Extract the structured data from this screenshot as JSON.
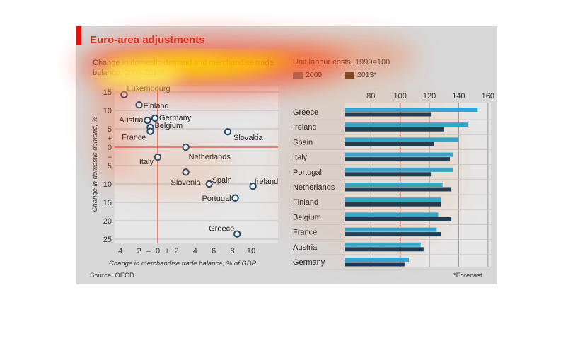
{
  "title": "Euro-area adjustments",
  "source": "Source: OECD",
  "footnote": "*Forecast",
  "colors": {
    "accent": "#e3120b",
    "dot": "#1f4a6b",
    "bar2009": "#2aa9d6",
    "bar2013": "#123a57",
    "redline": "#e34a3a"
  },
  "chart_data": [
    {
      "type": "scatter",
      "title": "Change in domestic demand and merchandise trade balance, 2009-2013*",
      "xlabel": "Change in merchandise trade balance, % of GDP",
      "ylabel": "Change in domestic demand, %",
      "xlim": [
        -5,
        12
      ],
      "ylim": [
        -25,
        17
      ],
      "x_ticks": [
        {
          "v": -4,
          "label": "4"
        },
        {
          "v": -2,
          "label": "2"
        },
        {
          "v": -1,
          "label": "–"
        },
        {
          "v": 0,
          "label": "0"
        },
        {
          "v": 1,
          "label": "+"
        },
        {
          "v": 2,
          "label": "2"
        },
        {
          "v": 4,
          "label": "4"
        },
        {
          "v": 6,
          "label": "6"
        },
        {
          "v": 8,
          "label": "8"
        },
        {
          "v": 10,
          "label": "10"
        }
      ],
      "y_ticks": [
        {
          "v": 15,
          "label": "15"
        },
        {
          "v": 10,
          "label": "10"
        },
        {
          "v": 5,
          "label": "5"
        },
        {
          "v": 2.5,
          "label": "+"
        },
        {
          "v": 0,
          "label": "0"
        },
        {
          "v": -2.5,
          "label": "–"
        },
        {
          "v": -5,
          "label": "5"
        },
        {
          "v": -10,
          "label": "10"
        },
        {
          "v": -15,
          "label": "15"
        },
        {
          "v": -20,
          "label": "20"
        },
        {
          "v": -25,
          "label": "25"
        }
      ],
      "points": [
        {
          "name": "Luxembourg",
          "x": -3.6,
          "y": 14.3
        },
        {
          "name": "Finland",
          "x": -2.0,
          "y": 11.5
        },
        {
          "name": "Germany",
          "x": -0.3,
          "y": 7.9
        },
        {
          "name": "Austria",
          "x": -1.1,
          "y": 7.3
        },
        {
          "name": "Belgium",
          "x": -0.8,
          "y": 5.4
        },
        {
          "name": "France",
          "x": -0.8,
          "y": 4.3
        },
        {
          "name": "Slovakia",
          "x": 7.5,
          "y": 4.2
        },
        {
          "name": "Netherlands",
          "x": 3.0,
          "y": 0.0
        },
        {
          "name": "Italy",
          "x": 0.0,
          "y": -2.7
        },
        {
          "name": "Slovenia",
          "x": 3.0,
          "y": -6.8
        },
        {
          "name": "Spain",
          "x": 5.5,
          "y": -10.0
        },
        {
          "name": "Ireland",
          "x": 10.2,
          "y": -10.6
        },
        {
          "name": "Portugal",
          "x": 8.3,
          "y": -13.8
        },
        {
          "name": "Greece",
          "x": 8.5,
          "y": -23.6
        }
      ]
    },
    {
      "type": "bar",
      "title": "Unit labour costs, 1999=100",
      "xlim": [
        62,
        162
      ],
      "x_ticks": [
        80,
        100,
        120,
        140,
        160
      ],
      "categories": [
        "Greece",
        "Ireland",
        "Spain",
        "Italy",
        "Portugal",
        "Netherlands",
        "Finland",
        "Belgium",
        "France",
        "Austria",
        "Germany"
      ],
      "series": [
        {
          "name": "2009",
          "values": [
            153,
            146,
            140,
            136,
            136,
            129,
            128,
            126,
            125,
            114,
            106
          ]
        },
        {
          "name": "2013*",
          "values": [
            121,
            130,
            123,
            134,
            121,
            135,
            128,
            135,
            128,
            116,
            103
          ]
        }
      ]
    }
  ]
}
